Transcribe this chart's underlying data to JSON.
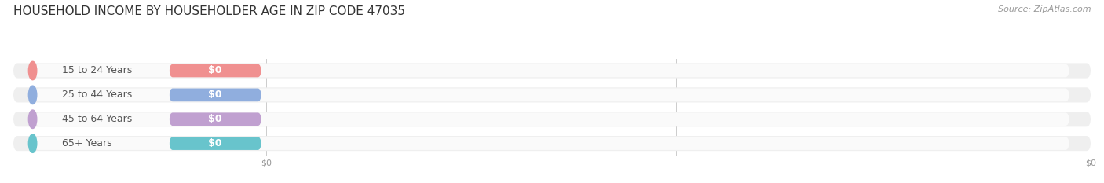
{
  "title": "HOUSEHOLD INCOME BY HOUSEHOLDER AGE IN ZIP CODE 47035",
  "source": "Source: ZipAtlas.com",
  "categories": [
    "15 to 24 Years",
    "25 to 44 Years",
    "45 to 64 Years",
    "65+ Years"
  ],
  "values": [
    0,
    0,
    0,
    0
  ],
  "bar_colors": [
    "#f09090",
    "#90aede",
    "#c0a0d0",
    "#68c4cc"
  ],
  "row_bg_color": "#efefef",
  "row_bg_light": "#f8f8f8",
  "value_labels": [
    "$0",
    "$0",
    "$0",
    "$0"
  ],
  "x_tick_labels": [
    "$0",
    "$0"
  ],
  "category_text_color": "#555555",
  "value_text_color": "#ffffff",
  "title_color": "#333333",
  "source_color": "#999999",
  "grid_color": "#cccccc",
  "background_color": "#ffffff",
  "title_fontsize": 11,
  "source_fontsize": 8,
  "cat_fontsize": 9,
  "val_fontsize": 9,
  "tick_fontsize": 8,
  "figsize": [
    14.06,
    2.33
  ],
  "dpi": 100
}
